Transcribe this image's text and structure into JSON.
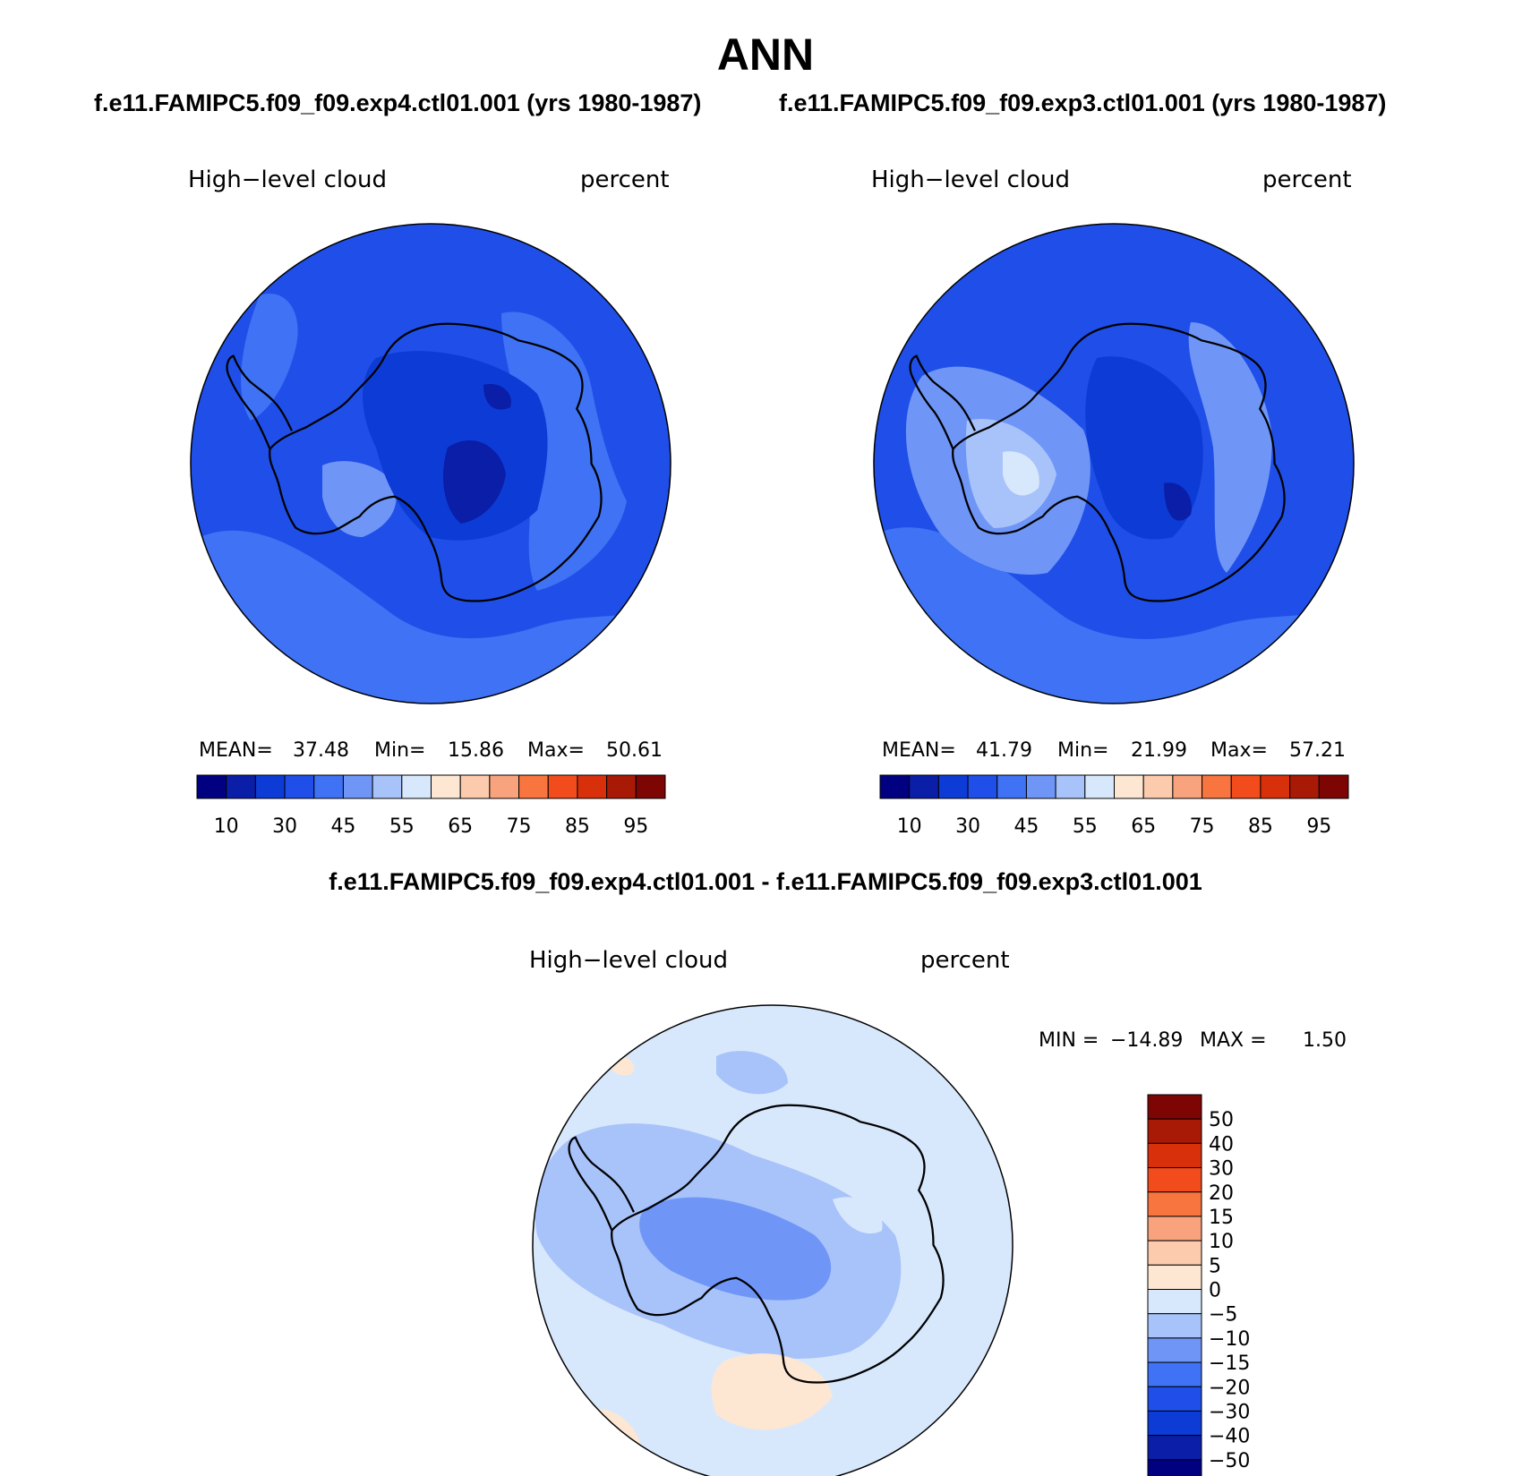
{
  "title": "ANN",
  "panels": [
    {
      "case_title": "f.e11.FAMIPC5.f09_f09.exp4.ctl01.001 (yrs 1980-1987)",
      "variable": "High−level cloud",
      "units": "percent",
      "mean_label": "MEAN=",
      "mean": "37.48",
      "min_label": "Min=",
      "min": "15.86",
      "max_label": "Max=",
      "max": "50.61"
    },
    {
      "case_title": "f.e11.FAMIPC5.f09_f09.exp3.ctl01.001 (yrs 1980-1987)",
      "variable": "High−level cloud",
      "units": "percent",
      "mean_label": "MEAN=",
      "mean": "41.79",
      "min_label": "Min=",
      "min": "21.99",
      "max_label": "Max=",
      "max": "57.21"
    }
  ],
  "abs_colorbar": {
    "colors": [
      "#000080",
      "#0a1ea8",
      "#0d3bd6",
      "#1f4fe8",
      "#3f72f4",
      "#6f96f7",
      "#a8c3fa",
      "#d8e8fc",
      "#fde7d3",
      "#fccbae",
      "#f9a37e",
      "#f8753f",
      "#f24c1c",
      "#d9300c",
      "#a81a06",
      "#7d0504"
    ],
    "tick_labels": [
      "10",
      "30",
      "45",
      "55",
      "65",
      "75",
      "85",
      "95"
    ]
  },
  "diff": {
    "title": "f.e11.FAMIPC5.f09_f09.exp4.ctl01.001 - f.e11.FAMIPC5.f09_f09.exp3.ctl01.001",
    "variable": "High−level cloud",
    "units": "percent",
    "min_label": "MIN =",
    "min": "−14.89",
    "max_label": "MAX =",
    "max": "1.50"
  },
  "diff_colorbar": {
    "colors": [
      "#000080",
      "#0a1ea8",
      "#0d3bd6",
      "#1f4fe8",
      "#3f72f4",
      "#6f96f7",
      "#a8c3fa",
      "#d8e8fc",
      "#fde7d3",
      "#fccbae",
      "#f9a37e",
      "#f8753f",
      "#f24c1c",
      "#d9300c",
      "#a81a06",
      "#7d0504"
    ],
    "tick_labels": [
      "−50",
      "−40",
      "−30",
      "−20",
      "−15",
      "−10",
      "−5",
      "0",
      "5",
      "10",
      "15",
      "20",
      "30",
      "40",
      "50"
    ]
  }
}
